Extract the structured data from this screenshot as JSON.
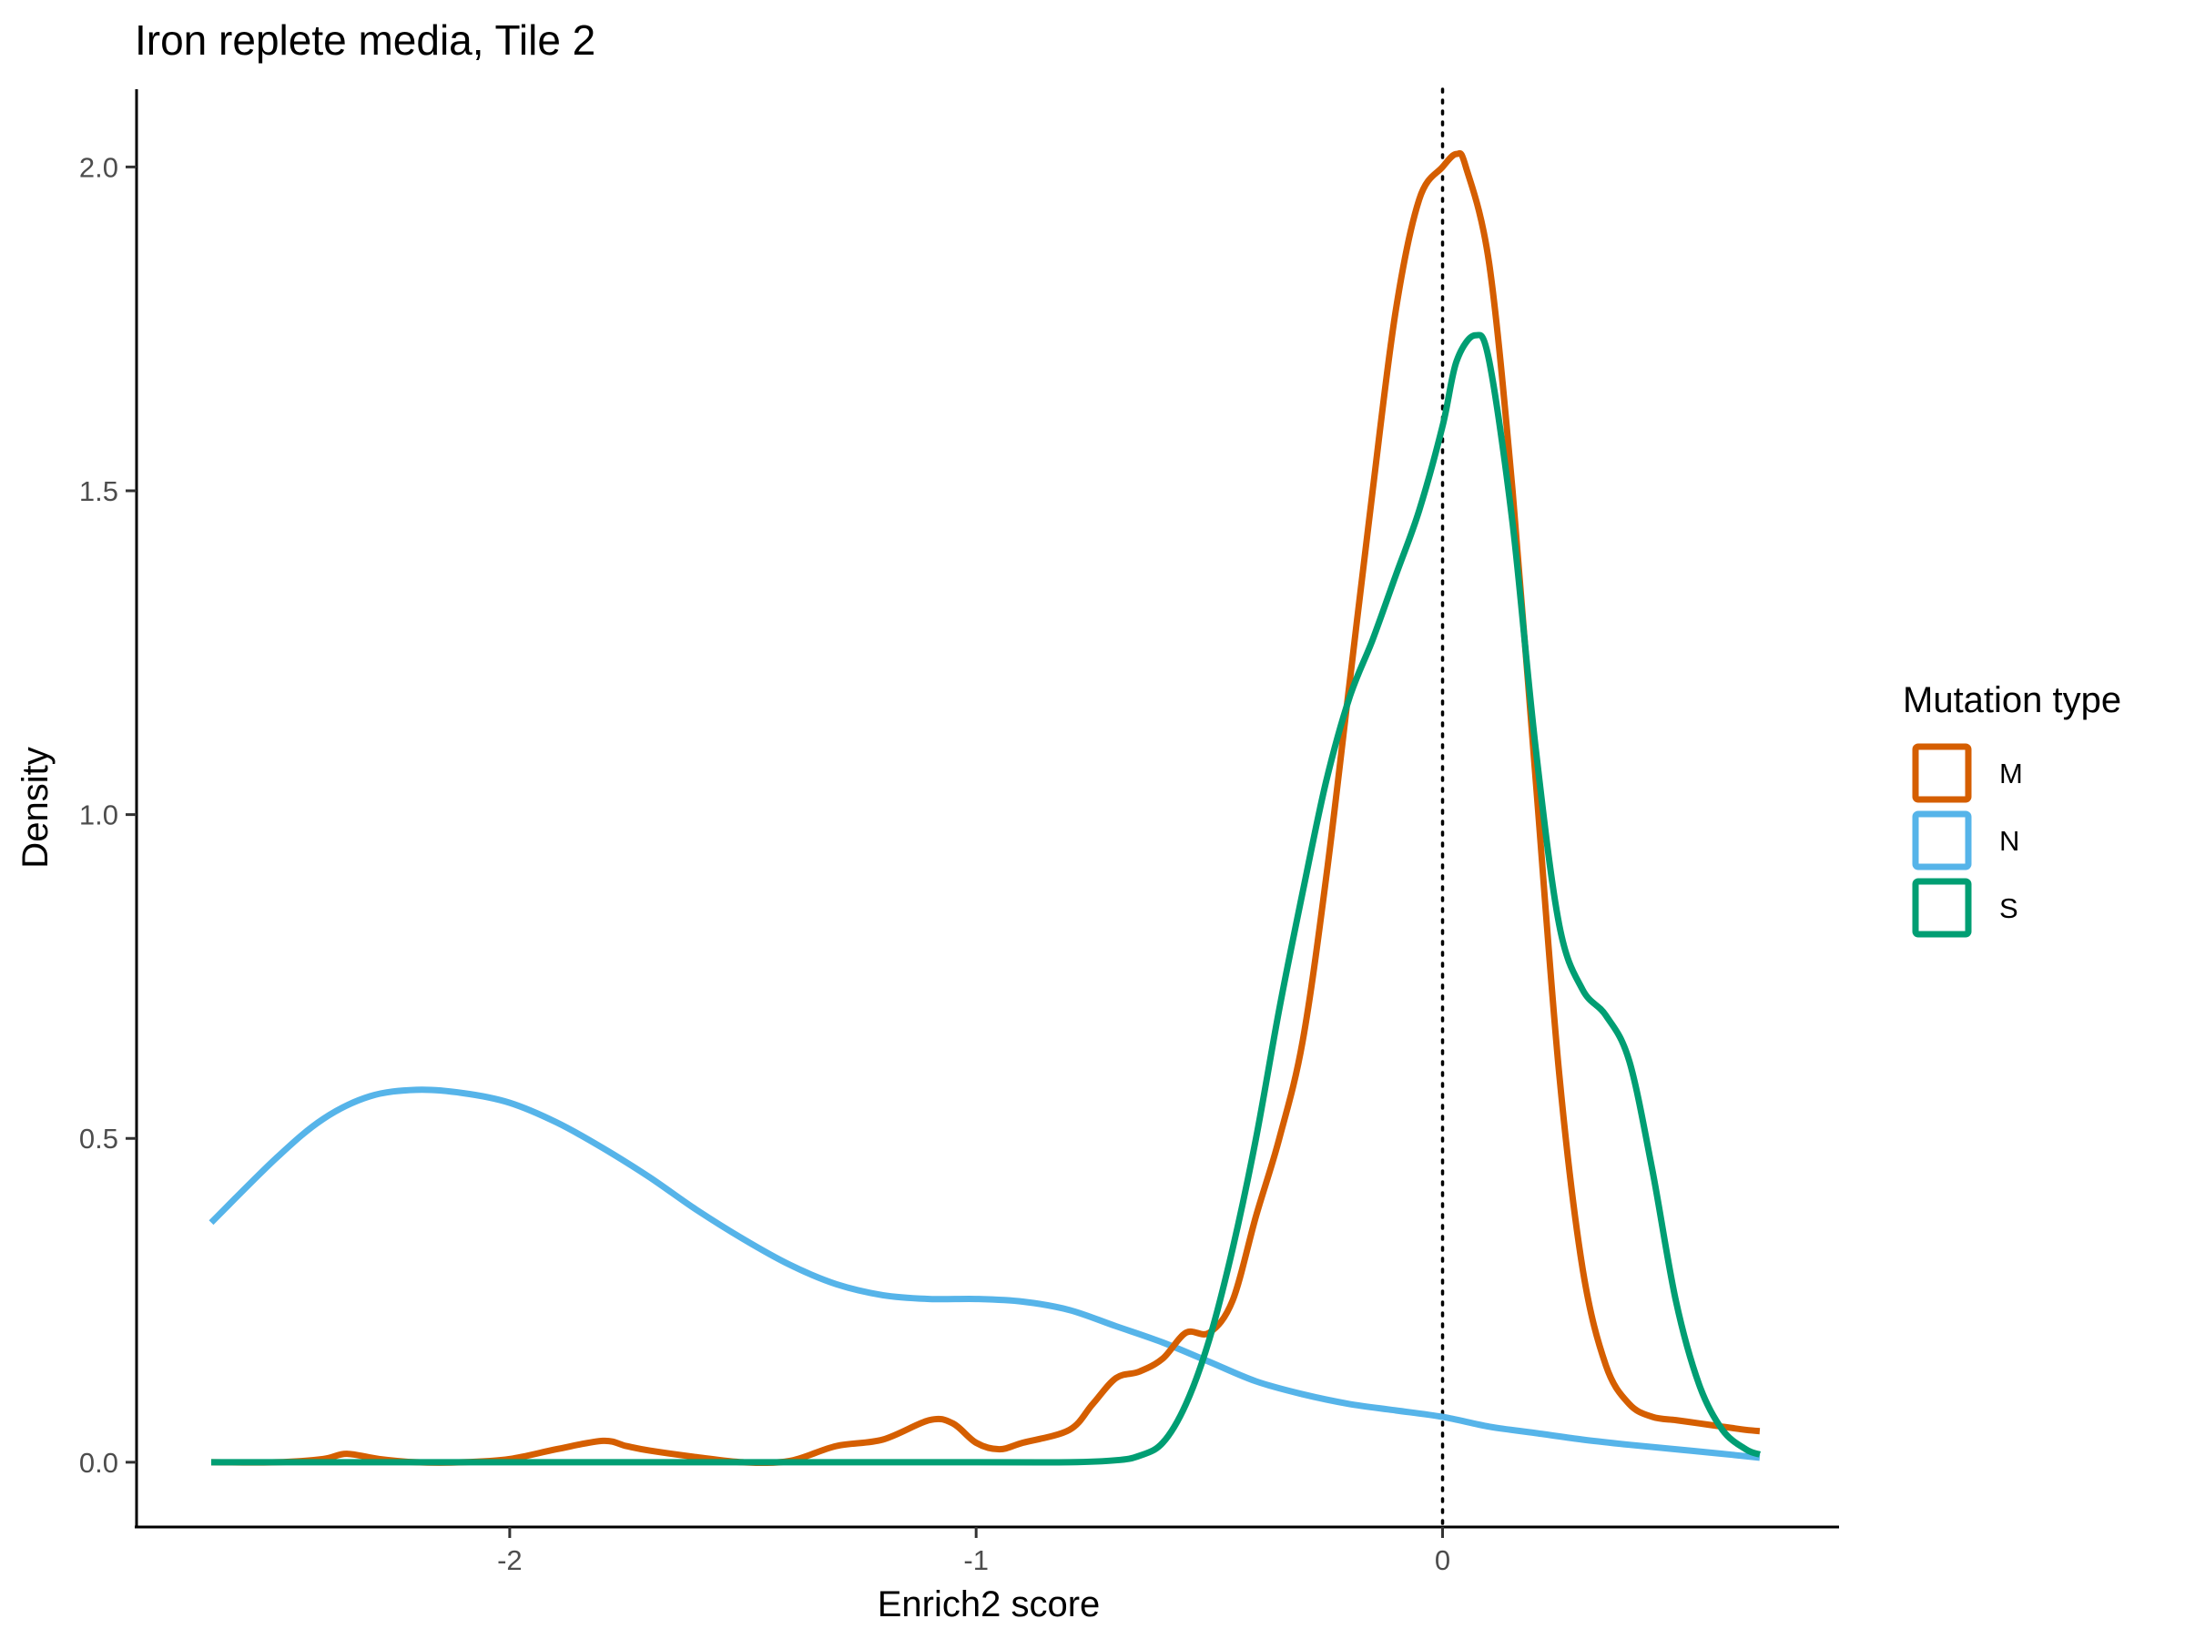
{
  "chart_data": {
    "type": "line",
    "title": "Iron replete media, Tile 2",
    "xlabel": "Enrich2 score",
    "ylabel": "Density",
    "xlim": [
      -2.8,
      0.85
    ],
    "ylim": [
      -0.1,
      2.12
    ],
    "xticks": [
      -2,
      -1,
      0
    ],
    "yticks": [
      0.0,
      0.5,
      1.0,
      1.5,
      2.0
    ],
    "xtick_labels": [
      "-2",
      "-1",
      "0"
    ],
    "ytick_labels": [
      "0.0",
      "0.5",
      "1.0",
      "1.5",
      "2.0"
    ],
    "grid": false,
    "vline": {
      "x": 0,
      "style": "dotted",
      "color": "#000000"
    },
    "legend": {
      "title": "Mutation type",
      "position": "right"
    },
    "series": [
      {
        "name": "M",
        "color": "#D55E00",
        "x": [
          -2.64,
          -2.5,
          -2.4,
          -2.35,
          -2.28,
          -2.2,
          -2.1,
          -2.0,
          -1.9,
          -1.8,
          -1.75,
          -1.7,
          -1.6,
          -1.5,
          -1.4,
          -1.3,
          -1.2,
          -1.1,
          -1.05,
          -1.0,
          -0.95,
          -0.9,
          -0.8,
          -0.75,
          -0.7,
          -0.65,
          -0.6,
          -0.55,
          -0.5,
          -0.45,
          -0.4,
          -0.35,
          -0.3,
          -0.25,
          -0.2,
          -0.15,
          -0.1,
          -0.05,
          0.0,
          0.03,
          0.05,
          0.1,
          0.15,
          0.2,
          0.25,
          0.3,
          0.35,
          0.4,
          0.45,
          0.5,
          0.55,
          0.6,
          0.65,
          0.68
        ],
        "values": [
          0.0,
          0.0,
          0.005,
          0.013,
          0.005,
          0.0,
          0.0,
          0.005,
          0.02,
          0.033,
          0.025,
          0.018,
          0.008,
          0.0,
          0.002,
          0.025,
          0.035,
          0.065,
          0.06,
          0.03,
          0.02,
          0.03,
          0.05,
          0.09,
          0.13,
          0.14,
          0.16,
          0.2,
          0.2,
          0.25,
          0.38,
          0.5,
          0.65,
          0.9,
          1.2,
          1.5,
          1.78,
          1.95,
          2.0,
          2.02,
          2.0,
          1.85,
          1.5,
          1.05,
          0.6,
          0.3,
          0.15,
          0.09,
          0.07,
          0.065,
          0.06,
          0.055,
          0.05,
          0.048
        ]
      },
      {
        "name": "N",
        "color": "#56B4E9",
        "x": [
          -2.64,
          -2.5,
          -2.4,
          -2.3,
          -2.2,
          -2.1,
          -2.0,
          -1.9,
          -1.8,
          -1.7,
          -1.6,
          -1.5,
          -1.4,
          -1.3,
          -1.2,
          -1.1,
          -1.0,
          -0.9,
          -0.8,
          -0.7,
          -0.6,
          -0.5,
          -0.4,
          -0.3,
          -0.2,
          -0.1,
          0.0,
          0.1,
          0.2,
          0.3,
          0.4,
          0.5,
          0.6,
          0.68
        ],
        "values": [
          0.37,
          0.47,
          0.53,
          0.565,
          0.575,
          0.57,
          0.555,
          0.525,
          0.485,
          0.44,
          0.39,
          0.345,
          0.305,
          0.275,
          0.258,
          0.252,
          0.252,
          0.248,
          0.235,
          0.21,
          0.185,
          0.155,
          0.125,
          0.105,
          0.09,
          0.08,
          0.07,
          0.055,
          0.045,
          0.035,
          0.027,
          0.02,
          0.013,
          0.007
        ]
      },
      {
        "name": "S",
        "color": "#009E73",
        "x": [
          -2.64,
          -2.0,
          -1.5,
          -1.0,
          -0.8,
          -0.7,
          -0.65,
          -0.6,
          -0.55,
          -0.5,
          -0.45,
          -0.4,
          -0.35,
          -0.3,
          -0.25,
          -0.2,
          -0.15,
          -0.1,
          -0.05,
          0.0,
          0.03,
          0.07,
          0.1,
          0.15,
          0.2,
          0.25,
          0.3,
          0.35,
          0.4,
          0.45,
          0.5,
          0.55,
          0.6,
          0.65,
          0.68
        ],
        "values": [
          0.0,
          0.0,
          0.0,
          0.0,
          0.0,
          0.003,
          0.01,
          0.03,
          0.09,
          0.19,
          0.33,
          0.5,
          0.7,
          0.88,
          1.05,
          1.18,
          1.27,
          1.37,
          1.47,
          1.6,
          1.7,
          1.74,
          1.7,
          1.45,
          1.1,
          0.83,
          0.73,
          0.69,
          0.62,
          0.45,
          0.25,
          0.12,
          0.05,
          0.02,
          0.012
        ]
      }
    ]
  }
}
